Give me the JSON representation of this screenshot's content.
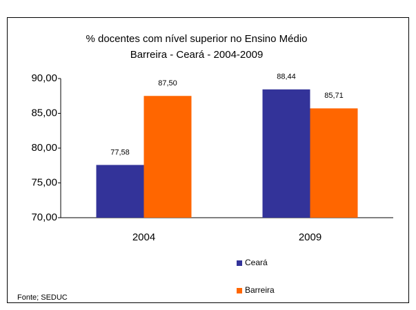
{
  "chart_data": {
    "type": "bar",
    "title": "% docentes com nível superior no Ensino Médio",
    "subtitle": "Barreira  -  Ceará - 2004-2009",
    "categories": [
      "2004",
      "2009"
    ],
    "series": [
      {
        "name": "Ceará",
        "color": "#333399",
        "values": [
          77.58,
          88.44
        ],
        "value_labels": [
          "77,58",
          "88,44"
        ]
      },
      {
        "name": "Barreira",
        "color": "#ff6600",
        "values": [
          87.5,
          85.71
        ],
        "value_labels": [
          "87,50",
          "85,71"
        ]
      }
    ],
    "ylim": [
      70,
      90
    ],
    "yticks": [
      {
        "value": 70,
        "label": "70,00"
      },
      {
        "value": 75,
        "label": "75,00"
      },
      {
        "value": 80,
        "label": "80,00"
      },
      {
        "value": 85,
        "label": "85,00"
      },
      {
        "value": 90,
        "label": "90,00"
      }
    ],
    "grid": false,
    "legend": "bottom",
    "source": "Fonte; SEDUC"
  }
}
